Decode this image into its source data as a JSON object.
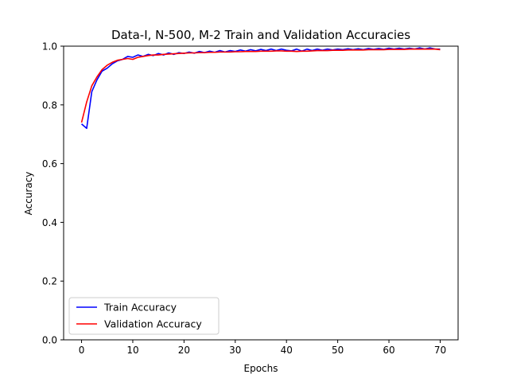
{
  "chart_data": {
    "type": "line",
    "title": "Data-I, N-500, M-2 Train and Validation Accuracies",
    "xlabel": "Epochs",
    "ylabel": "Accuracy",
    "xlim": [
      -3.5,
      73.5
    ],
    "ylim": [
      0.0,
      1.0
    ],
    "xticks": [
      0,
      10,
      20,
      30,
      40,
      50,
      60,
      70
    ],
    "yticks": [
      0.0,
      0.2,
      0.4,
      0.6,
      0.8,
      1.0
    ],
    "xtick_labels": [
      "0",
      "10",
      "20",
      "30",
      "40",
      "50",
      "60",
      "70"
    ],
    "ytick_labels": [
      "0.0",
      "0.2",
      "0.4",
      "0.6",
      "0.8",
      "1.0"
    ],
    "grid": false,
    "legend_position": "bottom-left",
    "x": [
      0,
      1,
      2,
      3,
      4,
      5,
      6,
      7,
      8,
      9,
      10,
      11,
      12,
      13,
      14,
      15,
      16,
      17,
      18,
      19,
      20,
      21,
      22,
      23,
      24,
      25,
      26,
      27,
      28,
      29,
      30,
      31,
      32,
      33,
      34,
      35,
      36,
      37,
      38,
      39,
      40,
      41,
      42,
      43,
      44,
      45,
      46,
      47,
      48,
      49,
      50,
      51,
      52,
      53,
      54,
      55,
      56,
      57,
      58,
      59,
      60,
      61,
      62,
      63,
      64,
      65,
      66,
      67,
      68,
      69,
      70
    ],
    "series": [
      {
        "name": "Train Accuracy",
        "color": "#0000ff",
        "values": [
          0.735,
          0.72,
          0.845,
          0.885,
          0.915,
          0.925,
          0.94,
          0.95,
          0.955,
          0.965,
          0.962,
          0.97,
          0.965,
          0.972,
          0.968,
          0.975,
          0.97,
          0.977,
          0.972,
          0.978,
          0.975,
          0.98,
          0.976,
          0.982,
          0.978,
          0.983,
          0.979,
          0.985,
          0.98,
          0.985,
          0.982,
          0.987,
          0.983,
          0.988,
          0.984,
          0.989,
          0.985,
          0.99,
          0.985,
          0.99,
          0.986,
          0.984,
          0.99,
          0.983,
          0.99,
          0.985,
          0.99,
          0.986,
          0.99,
          0.987,
          0.99,
          0.988,
          0.991,
          0.988,
          0.991,
          0.988,
          0.992,
          0.989,
          0.992,
          0.989,
          0.993,
          0.99,
          0.993,
          0.99,
          0.993,
          0.99,
          0.994,
          0.99,
          0.994,
          0.99,
          0.99
        ]
      },
      {
        "name": "Validation Accuracy",
        "color": "#ff0000",
        "values": [
          0.74,
          0.81,
          0.865,
          0.895,
          0.92,
          0.935,
          0.945,
          0.952,
          0.955,
          0.958,
          0.955,
          0.962,
          0.965,
          0.968,
          0.97,
          0.97,
          0.972,
          0.973,
          0.974,
          0.975,
          0.976,
          0.977,
          0.977,
          0.978,
          0.978,
          0.979,
          0.979,
          0.98,
          0.98,
          0.98,
          0.981,
          0.981,
          0.982,
          0.982,
          0.982,
          0.983,
          0.983,
          0.983,
          0.984,
          0.984,
          0.983,
          0.983,
          0.982,
          0.983,
          0.983,
          0.984,
          0.985,
          0.985,
          0.985,
          0.986,
          0.986,
          0.986,
          0.987,
          0.987,
          0.987,
          0.987,
          0.988,
          0.988,
          0.988,
          0.988,
          0.989,
          0.989,
          0.989,
          0.989,
          0.99,
          0.99,
          0.99,
          0.99,
          0.99,
          0.99,
          0.988
        ]
      }
    ]
  }
}
